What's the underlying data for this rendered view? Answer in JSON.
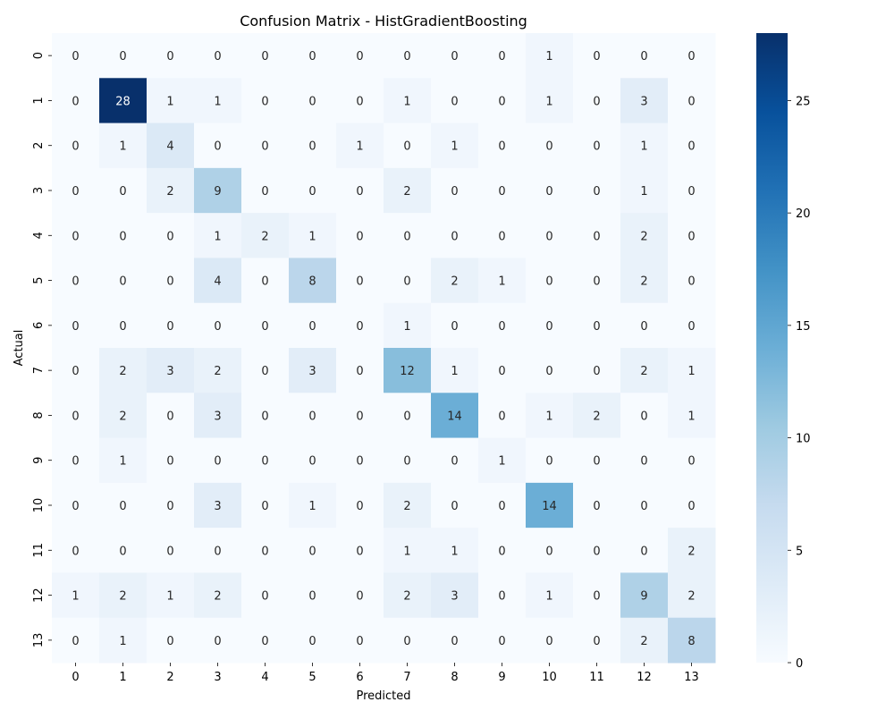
{
  "chart_data": {
    "type": "heatmap",
    "title": "Confusion Matrix - HistGradientBoosting",
    "xlabel": "Predicted",
    "ylabel": "Actual",
    "x_categories": [
      "0",
      "1",
      "2",
      "3",
      "4",
      "5",
      "6",
      "7",
      "8",
      "9",
      "10",
      "11",
      "12",
      "13"
    ],
    "y_categories": [
      "0",
      "1",
      "2",
      "3",
      "4",
      "5",
      "6",
      "7",
      "8",
      "9",
      "10",
      "11",
      "12",
      "13"
    ],
    "matrix": [
      [
        0,
        0,
        0,
        0,
        0,
        0,
        0,
        0,
        0,
        0,
        1,
        0,
        0,
        0
      ],
      [
        0,
        28,
        1,
        1,
        0,
        0,
        0,
        1,
        0,
        0,
        1,
        0,
        3,
        0
      ],
      [
        0,
        1,
        4,
        0,
        0,
        0,
        1,
        0,
        1,
        0,
        0,
        0,
        1,
        0
      ],
      [
        0,
        0,
        2,
        9,
        0,
        0,
        0,
        2,
        0,
        0,
        0,
        0,
        1,
        0
      ],
      [
        0,
        0,
        0,
        1,
        2,
        1,
        0,
        0,
        0,
        0,
        0,
        0,
        2,
        0
      ],
      [
        0,
        0,
        0,
        4,
        0,
        8,
        0,
        0,
        2,
        1,
        0,
        0,
        2,
        0
      ],
      [
        0,
        0,
        0,
        0,
        0,
        0,
        0,
        1,
        0,
        0,
        0,
        0,
        0,
        0
      ],
      [
        0,
        2,
        3,
        2,
        0,
        3,
        0,
        12,
        1,
        0,
        0,
        0,
        2,
        1
      ],
      [
        0,
        2,
        0,
        3,
        0,
        0,
        0,
        0,
        14,
        0,
        1,
        2,
        0,
        1
      ],
      [
        0,
        1,
        0,
        0,
        0,
        0,
        0,
        0,
        0,
        1,
        0,
        0,
        0,
        0
      ],
      [
        0,
        0,
        0,
        3,
        0,
        1,
        0,
        2,
        0,
        0,
        14,
        0,
        0,
        0
      ],
      [
        0,
        0,
        0,
        0,
        0,
        0,
        0,
        1,
        1,
        0,
        0,
        0,
        0,
        2
      ],
      [
        1,
        2,
        1,
        2,
        0,
        0,
        0,
        2,
        3,
        0,
        1,
        0,
        9,
        2
      ],
      [
        0,
        1,
        0,
        0,
        0,
        0,
        0,
        0,
        0,
        0,
        0,
        0,
        2,
        8
      ]
    ],
    "colormap": "Blues",
    "colormap_stops": [
      "#f7fbff",
      "#deebf7",
      "#c6dbef",
      "#9ecae1",
      "#6baed6",
      "#4292c6",
      "#2171b5",
      "#08519c",
      "#08306b"
    ],
    "vmin": 0,
    "vmax": 28,
    "colorbar_ticks": [
      0,
      5,
      10,
      15,
      20,
      25
    ],
    "colorbar_tick_labels": [
      "0",
      "5",
      "10",
      "15",
      "20",
      "25"
    ],
    "annotated": true,
    "grid": false
  }
}
